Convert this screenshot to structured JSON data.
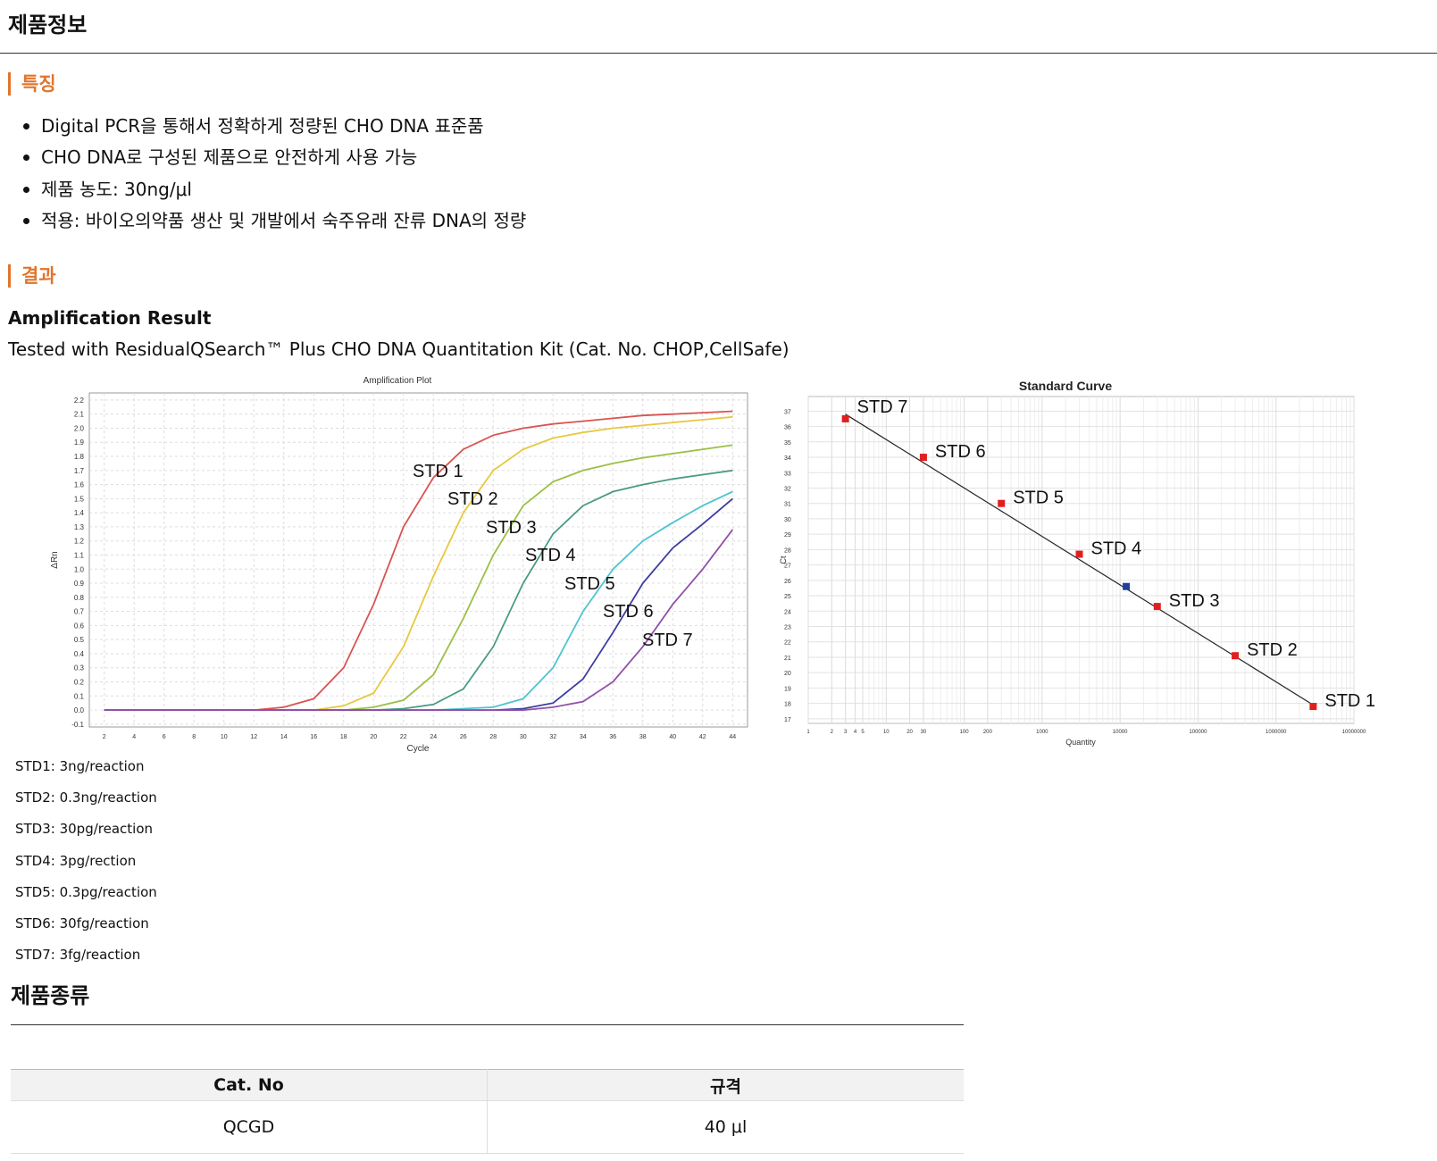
{
  "header": {
    "title": "제품정보"
  },
  "features": {
    "heading": "특징",
    "items": [
      "Digital PCR을 통해서 정확하게 정량된 CHO DNA 표준품",
      "CHO DNA로 구성된 제품으로 안전하게 사용 가능",
      "제품 농도: 30ng/μl",
      "적용: 바이오의약품 생산 및 개발에서 숙주유래 잔류 DNA의 정량"
    ]
  },
  "results": {
    "heading": "결과",
    "subtitle": "Amplification Result",
    "description": "Tested with ResidualQSearch™ Plus CHO DNA Quantitation Kit (Cat. No. CHOP,CellSafe)",
    "legend": [
      "STD1: 3ng/reaction",
      "STD2: 0.3ng/reaction",
      "STD3: 30pg/reaction",
      "STD4: 3pg/rection",
      "STD5: 0.3pg/reaction",
      "STD6: 30fg/reaction",
      "STD7: 3fg/reaction"
    ]
  },
  "chart_data": [
    {
      "type": "line",
      "title": "Amplification Plot",
      "x_label": "Cycle",
      "y_label": "ΔRn",
      "x": [
        2,
        4,
        6,
        8,
        10,
        12,
        14,
        16,
        18,
        20,
        22,
        24,
        26,
        28,
        30,
        32,
        34,
        36,
        38,
        40,
        42,
        44
      ],
      "xlim": [
        1,
        45
      ],
      "xticks": [
        2,
        4,
        6,
        8,
        10,
        12,
        14,
        16,
        18,
        20,
        22,
        24,
        26,
        28,
        30,
        32,
        34,
        36,
        38,
        40,
        42,
        44
      ],
      "ylim": [
        -0.12,
        2.25
      ],
      "yticks": [
        -0.1,
        {
          "value": 0,
          "label": "0.0"
        },
        0.1,
        0.2,
        0.3,
        0.4,
        0.5,
        0.6,
        0.7,
        0.8,
        0.9,
        {
          "value": 1,
          "label": "1.0"
        },
        1.1,
        1.2,
        1.3,
        1.4,
        1.5,
        1.6,
        1.7,
        1.8,
        1.9,
        {
          "value": 2,
          "label": "2.0"
        },
        2.1,
        2.2
      ],
      "grid": true,
      "series": [
        {
          "name": "STD 1",
          "color": "#d9534f",
          "values": [
            0,
            0,
            0,
            0,
            0,
            0,
            0.02,
            0.08,
            0.3,
            0.75,
            1.3,
            1.65,
            1.85,
            1.95,
            2.0,
            2.03,
            2.05,
            2.07,
            2.09,
            2.1,
            2.11,
            2.12
          ]
        },
        {
          "name": "STD 2",
          "color": "#e8c840",
          "values": [
            0,
            0,
            0,
            0,
            0,
            0,
            0,
            0,
            0.03,
            0.12,
            0.45,
            0.95,
            1.4,
            1.7,
            1.85,
            1.93,
            1.97,
            2.0,
            2.02,
            2.04,
            2.06,
            2.08
          ]
        },
        {
          "name": "STD 3",
          "color": "#9bbf45",
          "values": [
            0,
            0,
            0,
            0,
            0,
            0,
            0,
            0,
            0,
            0.02,
            0.07,
            0.25,
            0.65,
            1.1,
            1.45,
            1.62,
            1.7,
            1.75,
            1.79,
            1.82,
            1.85,
            1.88
          ]
        },
        {
          "name": "STD 4",
          "color": "#4a9a86",
          "values": [
            0,
            0,
            0,
            0,
            0,
            0,
            0,
            0,
            0,
            0,
            0.01,
            0.04,
            0.15,
            0.45,
            0.9,
            1.25,
            1.45,
            1.55,
            1.6,
            1.64,
            1.67,
            1.7
          ]
        },
        {
          "name": "STD 5",
          "color": "#4ec4d0",
          "values": [
            0,
            0,
            0,
            0,
            0,
            0,
            0,
            0,
            0,
            0,
            0,
            0,
            0.01,
            0.02,
            0.08,
            0.3,
            0.7,
            1.0,
            1.2,
            1.33,
            1.45,
            1.55
          ]
        },
        {
          "name": "STD 6",
          "color": "#3c3ca0",
          "values": [
            0,
            0,
            0,
            0,
            0,
            0,
            0,
            0,
            0,
            0,
            0,
            0,
            0,
            0,
            0.01,
            0.05,
            0.22,
            0.55,
            0.9,
            1.15,
            1.32,
            1.5
          ]
        },
        {
          "name": "STD 7",
          "color": "#9050a8",
          "values": [
            0,
            0,
            0,
            0,
            0,
            0,
            0,
            0,
            0,
            0,
            0,
            0,
            0,
            0,
            0,
            0.02,
            0.06,
            0.2,
            0.45,
            0.75,
            1.0,
            1.28
          ]
        }
      ]
    },
    {
      "type": "scatter",
      "title": "Standard Curve",
      "x_label": "Quantity",
      "y_label": "Ct",
      "log_x": true,
      "x": [
        3,
        30,
        300,
        3000,
        30000,
        300000,
        3000000
      ],
      "values": [
        36.5,
        34.0,
        31.0,
        27.7,
        24.3,
        21.1,
        17.8
      ],
      "point_labels": [
        "STD 7",
        "STD 6",
        "STD 5",
        "STD 4",
        "STD 3",
        "STD 2",
        "STD 1"
      ],
      "color": "#e02020",
      "unknown": {
        "x": 12000,
        "y": 25.6,
        "color": "#1f3f9f"
      },
      "fit": {
        "x": [
          3,
          3000000
        ],
        "y": [
          36.8,
          17.9
        ]
      },
      "xlim": [
        1,
        10000000
      ],
      "xticks": [
        1,
        2,
        3,
        4,
        5,
        10,
        20,
        30,
        100,
        200,
        1000,
        10000,
        100000,
        1000000,
        10000000
      ],
      "ylim": [
        16.7,
        37.95
      ],
      "yticks": [
        17,
        18,
        19,
        20,
        21,
        22,
        23,
        24,
        25,
        26,
        27,
        28,
        29,
        30,
        31,
        32,
        33,
        34,
        35,
        36,
        37
      ],
      "grid": true
    }
  ],
  "products": {
    "heading": "제품종류",
    "table": {
      "header": [
        "Cat. No",
        "규격"
      ],
      "rows": [
        [
          "QCGD",
          "40 μl"
        ]
      ]
    }
  }
}
